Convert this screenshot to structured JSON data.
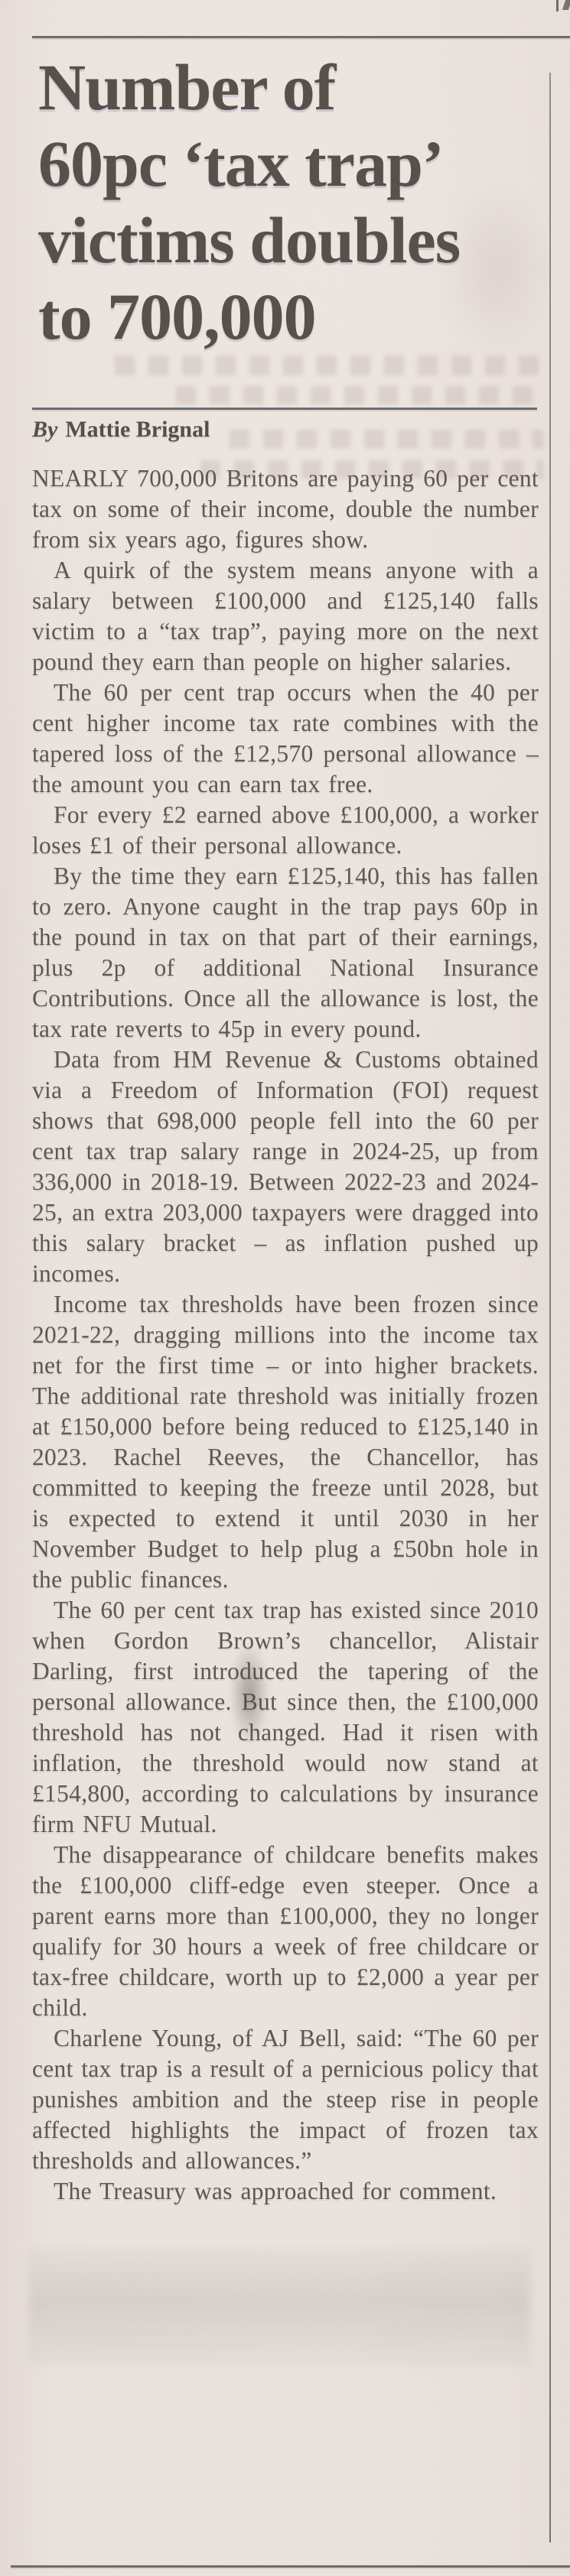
{
  "page": {
    "paper_color": "#eae2dd",
    "ink_color": "#5d564f",
    "headline_color": "#564f49",
    "rule_color": "#656a76"
  },
  "article": {
    "headline": "Number of 60pc ‘tax trap’ victims doubles to 700,000",
    "headline_lines": [
      "Number of",
      "60pc ‘tax trap’",
      "victims doubles",
      "to 700,000"
    ],
    "byline_prefix": "By",
    "byline_author": "Mattie Brignal",
    "paragraphs": [
      "NEARLY 700,000 Britons are paying 60 per cent tax on some of their income, double the number from six years ago, figures show.",
      "A quirk of the system means anyone with a salary between £100,000 and £125,140 falls victim to a “tax trap”, paying more on the next pound they earn than people on higher salaries.",
      "The 60 per cent trap occurs when the 40 per cent higher income tax rate combines with the tapered loss of the £12,570 personal allowance – the amount you can earn tax free.",
      "For every £2 earned above £100,000, a worker loses £1 of their personal allowance.",
      "By the time they earn £125,140, this has fallen to zero. Anyone caught in the trap pays 60p in the pound in tax on that part of their earnings, plus 2p of additional National Insurance Contributions. Once all the allowance is lost, the tax rate reverts to 45p in every pound.",
      "Data from HM Revenue & Customs obtained via a Freedom of Information (FOI) request shows that 698,000 people fell into the 60 per cent tax trap salary range in 2024-25, up from 336,000 in 2018-19. Between 2022-23 and 2024-25, an extra 203,000 taxpayers were dragged into this salary bracket – as inflation pushed up incomes.",
      "Income tax thresholds have been frozen since 2021-22, dragging millions into the income tax net for the first time – or into higher brackets. The additional rate threshold was initially frozen at £150,000 before being reduced to £125,140 in 2023. Rachel Reeves, the Chancellor, has committed to keeping the freeze until 2028, but is expected to extend it until 2030 in her November Budget to help plug a £50bn hole in the public finances.",
      "The 60 per cent tax trap has existed since 2010 when Gordon Brown’s chancellor, Alistair Darling, first introduced the tapering of the personal allowance. But since then, the £100,000 threshold has not changed. Had it risen with inflation, the threshold would now stand at £154,800, according to calculations by insurance firm NFU Mutual.",
      "The disappearance of childcare benefits makes the £100,000 cliff-edge even steeper. Once a parent earns more than £100,000, they no longer qualify for 30 hours a week of free childcare or tax-free childcare, worth up to £2,000 a year per child.",
      "Charlene Young, of AJ Bell, said: “The 60 per cent tax trap is a result of a pernicious policy that punishes ambition and the steep rise in people affected highlights the impact of frozen tax thresholds and allowances.”",
      "The Treasury was approached for comment."
    ]
  }
}
